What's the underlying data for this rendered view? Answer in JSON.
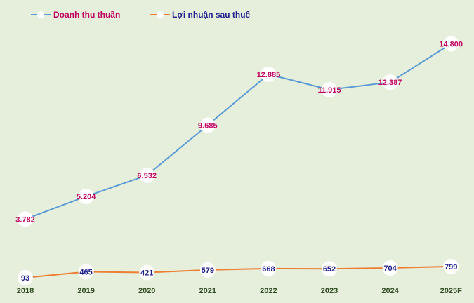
{
  "chart_data": {
    "type": "line",
    "categories": [
      "2018",
      "2019",
      "2020",
      "2021",
      "2022",
      "2023",
      "2024",
      "2025F"
    ],
    "series": [
      {
        "name": "Doanh thu thuần",
        "values": [
          3782,
          5204,
          6532,
          9685,
          12885,
          11915,
          12387,
          14800
        ],
        "labels": [
          "3.782",
          "5.204",
          "6.532",
          "9.685",
          "12.885",
          "11.915",
          "12.387",
          "14.800"
        ],
        "color": "#5b9bd5",
        "label_color": "#c0005e"
      },
      {
        "name": "Lợi nhuận sau thuế",
        "values": [
          93,
          465,
          421,
          579,
          668,
          652,
          704,
          799
        ],
        "labels": [
          "93",
          "465",
          "421",
          "579",
          "668",
          "652",
          "704",
          "799"
        ],
        "color": "#ed7d31",
        "label_color": "#1f1f8f"
      }
    ],
    "ylim": [
      0,
      15000
    ],
    "grid": false,
    "legend": "top-left",
    "background": "#e6efdb"
  }
}
